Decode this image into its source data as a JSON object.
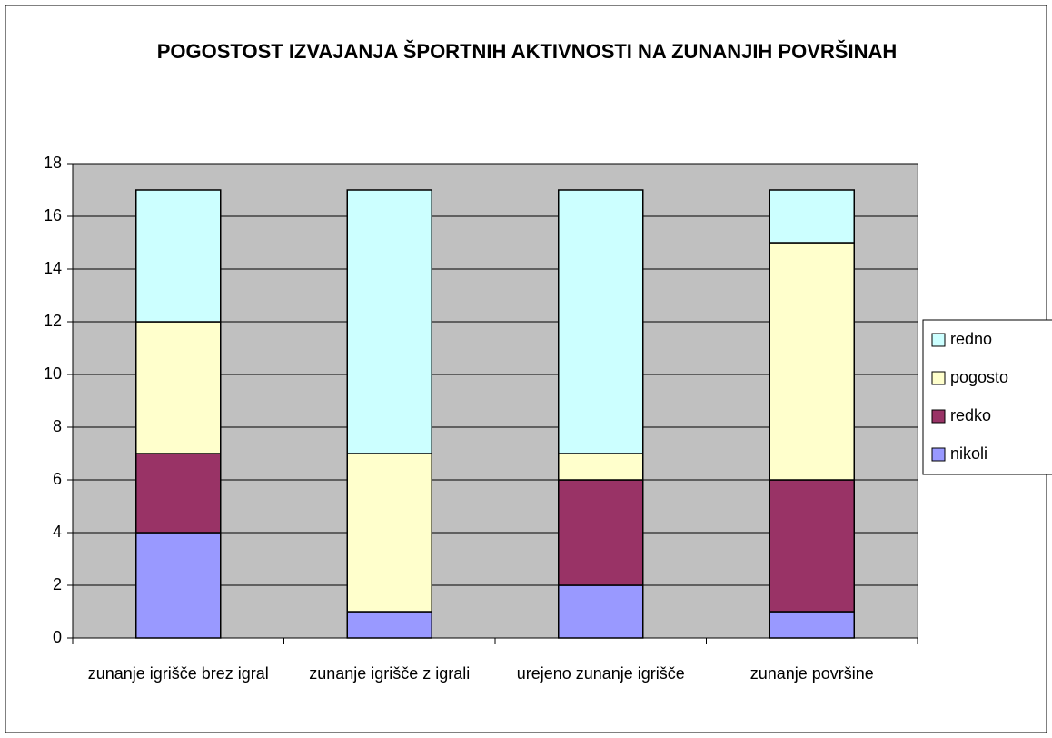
{
  "chart_data": {
    "type": "stacked_bar",
    "title": "POGOSTOST IZVAJANJA ŠPORTNIH AKTIVNOSTI NA ZUNANJIH POVRŠINAH",
    "categories": [
      "zunanje igrišče brez igral",
      "zunanje igrišče z igrali",
      "urejeno zunanje igrišče",
      "zunanje površine"
    ],
    "series": [
      {
        "name": "nikoli",
        "color": "#9999ff",
        "values": [
          4,
          1,
          2,
          1
        ]
      },
      {
        "name": "redko",
        "color": "#993366",
        "values": [
          3,
          0,
          4,
          5
        ]
      },
      {
        "name": "pogosto",
        "color": "#ffffcc",
        "values": [
          5,
          6,
          1,
          9
        ]
      },
      {
        "name": "redno",
        "color": "#ccffff",
        "values": [
          5,
          10,
          10,
          2
        ]
      }
    ],
    "ylim": [
      0,
      18
    ],
    "yticks": [
      0,
      2,
      4,
      6,
      8,
      10,
      12,
      14,
      16,
      18
    ],
    "grid": true,
    "legend": "right"
  }
}
